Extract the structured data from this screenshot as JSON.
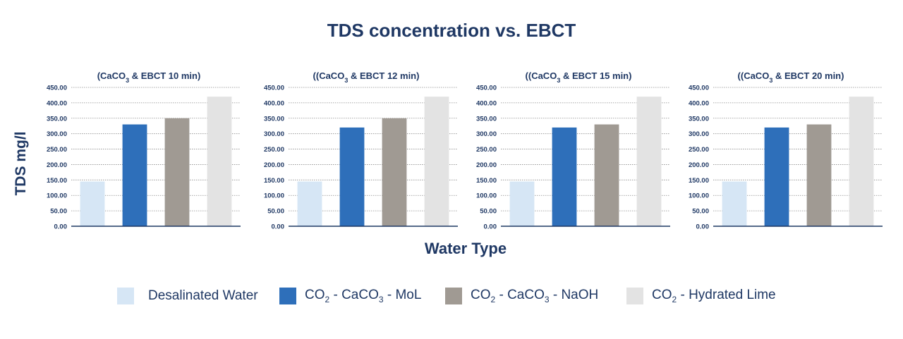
{
  "title": "TDS concentration vs. EBCT",
  "ylabel": "TDS mg/l",
  "xlabel": "Water Type",
  "legend": [
    {
      "name": "Desalinated Water",
      "pre": "Desalinated Water",
      "sub": "",
      "post": "",
      "color": "#d6e6f5"
    },
    {
      "name": "CO2 - CaCO3 - MoL",
      "pre": "CO",
      "sub": "2",
      "mid": " - CaCO",
      "sub2": "3",
      "post": " - MoL",
      "color": "#2e6fba"
    },
    {
      "name": "CO2 - CaCO3 - NaOH",
      "pre": "CO",
      "sub": "2",
      "mid": " - CaCO",
      "sub2": "3",
      "post": " - NaOH",
      "color": "#a09a93"
    },
    {
      "name": "CO2 - Hydrated Lime",
      "pre": "CO",
      "sub": "2",
      "mid": " - Hydrated Lime",
      "sub2": "",
      "post": "",
      "color": "#e3e3e3"
    }
  ],
  "chart_data": [
    {
      "type": "bar",
      "title_pre": "(CaCO",
      "title_sub": "3",
      "title_post": " & EBCT 10 min)",
      "categories": [
        "Desalinated Water",
        "CO2 - CaCO3 - MoL",
        "CO2 - CaCO3 - NaOH",
        "CO2 - Hydrated Lime"
      ],
      "values": [
        145,
        330,
        350,
        420
      ],
      "ylim": [
        0,
        450
      ],
      "yticks": [
        "0.00",
        "50.00",
        "100.00",
        "150.00",
        "200.00",
        "250.00",
        "300.00",
        "350.00",
        "400.00",
        "450.00"
      ],
      "colors": [
        "#d6e6f5",
        "#2e6fba",
        "#a09a93",
        "#e3e3e3"
      ]
    },
    {
      "type": "bar",
      "title_pre": "((CaCO",
      "title_sub": "3",
      "title_post": " & EBCT 12 min)",
      "categories": [
        "Desalinated Water",
        "CO2 - CaCO3 - MoL",
        "CO2 - CaCO3 - NaOH",
        "CO2 - Hydrated Lime"
      ],
      "values": [
        145,
        320,
        350,
        420
      ],
      "ylim": [
        0,
        450
      ],
      "yticks": [
        "0.00",
        "50.00",
        "100.00",
        "150.00",
        "200.00",
        "250.00",
        "300.00",
        "350.00",
        "400.00",
        "450.00"
      ],
      "colors": [
        "#d6e6f5",
        "#2e6fba",
        "#a09a93",
        "#e3e3e3"
      ]
    },
    {
      "type": "bar",
      "title_pre": "((CaCO",
      "title_sub": "3",
      "title_post": " & EBCT 15 min)",
      "categories": [
        "Desalinated Water",
        "CO2 - CaCO3 - MoL",
        "CO2 - CaCO3 - NaOH",
        "CO2 - Hydrated Lime"
      ],
      "values": [
        145,
        320,
        330,
        420
      ],
      "ylim": [
        0,
        450
      ],
      "yticks": [
        "0.00",
        "50.00",
        "100.00",
        "150.00",
        "200.00",
        "250.00",
        "300.00",
        "350.00",
        "400.00",
        "450.00"
      ],
      "colors": [
        "#d6e6f5",
        "#2e6fba",
        "#a09a93",
        "#e3e3e3"
      ]
    },
    {
      "type": "bar",
      "title_pre": "((CaCO",
      "title_sub": "3",
      "title_post": " & EBCT 20 min)",
      "categories": [
        "Desalinated Water",
        "CO2 - CaCO3 - MoL",
        "CO2 - CaCO3 - NaOH",
        "CO2 - Hydrated Lime"
      ],
      "values": [
        145,
        320,
        330,
        420
      ],
      "ylim": [
        0,
        450
      ],
      "yticks": [
        "0.00",
        "50.00",
        "100.00",
        "150.00",
        "200.00",
        "250.00",
        "300.00",
        "350.00",
        "400.00",
        "450.00"
      ],
      "colors": [
        "#d6e6f5",
        "#2e6fba",
        "#a09a93",
        "#e3e3e3"
      ]
    }
  ]
}
